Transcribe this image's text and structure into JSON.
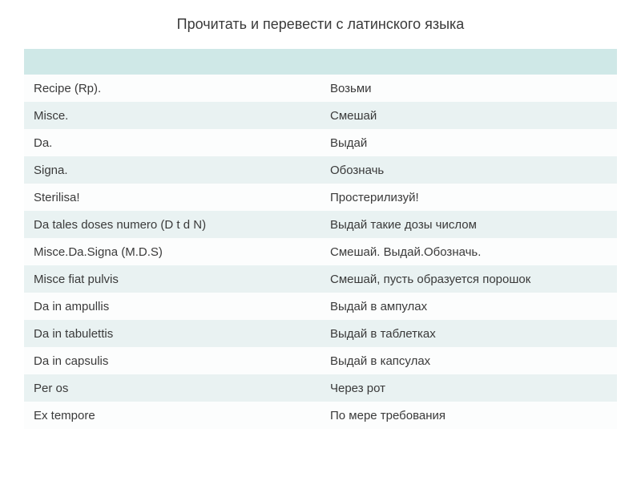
{
  "title": "Прочитать и перевести с латинского языка",
  "table": {
    "header_bg": "#cfe8e7",
    "row_even_bg": "#e9f2f2",
    "row_odd_bg": "#fcfdfd",
    "text_color": "#3a3a3a",
    "font_size": 15,
    "columns": [
      "latin",
      "russian"
    ],
    "rows": [
      {
        "latin": "Recipe (Rp).",
        "russian": "Возьми"
      },
      {
        "latin": "Misce.",
        "russian": "Смешай"
      },
      {
        "latin": "Da.",
        "russian": "Выдай"
      },
      {
        "latin": "Signa.",
        "russian": "Обозначь"
      },
      {
        "latin": "Sterilisa!",
        "russian": "Простерилизуй!"
      },
      {
        "latin": "Da tales doses numero (D t d N)",
        "russian": "Выдай такие дозы числом"
      },
      {
        "latin": "Misce.Da.Signa (M.D.S)",
        "russian": "Смешай. Выдай.Обозначь."
      },
      {
        "latin": "Misce fiat pulvis",
        "russian": "Смешай, пусть образуется порошок"
      },
      {
        "latin": "Da in  ampullis",
        "russian": "Выдай в ампулах"
      },
      {
        "latin": "Da in tabulettis",
        "russian": "Выдай в таблетках"
      },
      {
        "latin": "Da in capsulis",
        "russian": "Выдай в капсулах"
      },
      {
        "latin": "Per os",
        "russian": "Через рот"
      },
      {
        "latin": "Ex tempore",
        "russian": "По мере требования"
      }
    ]
  }
}
